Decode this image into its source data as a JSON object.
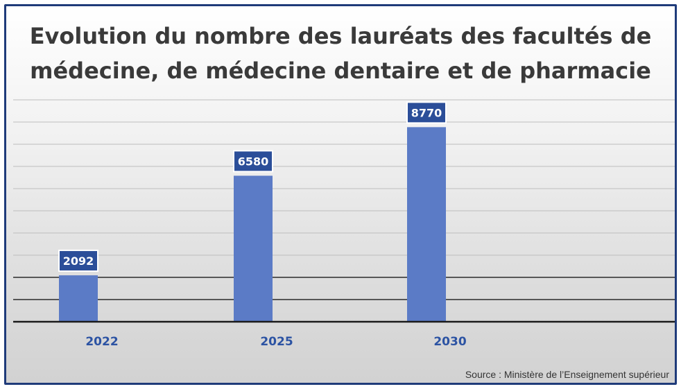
{
  "chart_data": {
    "type": "bar",
    "title": "Evolution du nombre des lauréats des facultés de médecine, de médecine dentaire et de pharmacie",
    "categories": [
      "2022",
      "2025",
      "2030"
    ],
    "values": [
      2092,
      6580,
      8770
    ],
    "xlabel": "",
    "ylabel": "",
    "ylim": [
      0,
      10000
    ],
    "grid": true,
    "legend": "none",
    "source": "Source : Ministère de l’Enseignement supérieur",
    "colors": {
      "bar": "#5b7bc6",
      "label_fill": "#2b4e99",
      "tick_text": "#2c53a3",
      "frame": "#1f3b7a",
      "gridline": "#2a2a2a"
    }
  }
}
